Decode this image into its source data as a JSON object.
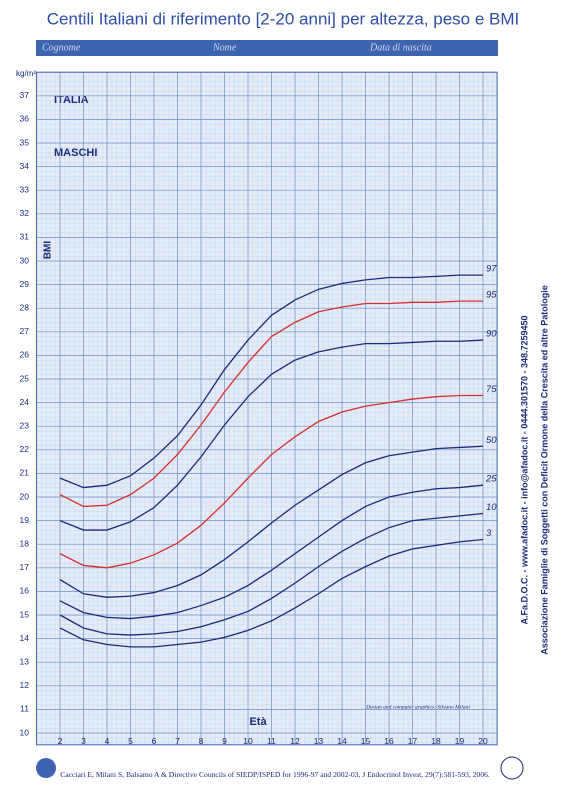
{
  "chart_data": {
    "type": "line",
    "title": "Centili Italiani di riferimento [2-20 anni] per altezza, peso e BMI",
    "fields": [
      "Cognome",
      "Nome",
      "Data di nascita"
    ],
    "country": "ITALIA",
    "sex": "MASCHI",
    "y_label": "BMI",
    "y_unit": "kg/m²",
    "x_label": "Età",
    "credit": "Design and computer graphics: Silvano Milani",
    "citation": "Cacciari E, Milani S, Balsamo A & Directive Councils of SIEDP/ISPED for 1996-97 and 2002-03, J Endocrinol Invest, 29(7):581-593, 2006.",
    "side_contacts": "A.Fa.D.O.C. - www.afadoc.it - info@afadoc.it - 0444.301570 - 348.7259450",
    "side_association": "Associazione Famiglie di Soggetti con Deficit Ormone della Crescita ed altre Patologie",
    "x": [
      2,
      3,
      4,
      5,
      6,
      7,
      8,
      9,
      10,
      11,
      12,
      13,
      14,
      15,
      16,
      17,
      18,
      19,
      20
    ],
    "series": [
      {
        "name": "97",
        "color": "#1b2a7a",
        "values": [
          20.8,
          20.4,
          20.5,
          20.9,
          21.65,
          22.6,
          23.9,
          25.4,
          26.65,
          27.7,
          28.35,
          28.8,
          29.05,
          29.2,
          29.3,
          29.3,
          29.35,
          29.4,
          29.4
        ]
      },
      {
        "name": "95",
        "color": "#d8302c",
        "values": [
          20.1,
          19.6,
          19.65,
          20.1,
          20.8,
          21.8,
          23.05,
          24.45,
          25.7,
          26.8,
          27.4,
          27.85,
          28.05,
          28.2,
          28.2,
          28.25,
          28.25,
          28.3,
          28.3
        ]
      },
      {
        "name": "90",
        "color": "#1b2a7a",
        "values": [
          19.0,
          18.6,
          18.6,
          18.95,
          19.55,
          20.5,
          21.7,
          23.05,
          24.25,
          25.2,
          25.8,
          26.15,
          26.35,
          26.5,
          26.5,
          26.55,
          26.6,
          26.6,
          26.65
        ]
      },
      {
        "name": "75",
        "color": "#d8302c",
        "values": [
          17.6,
          17.1,
          17.0,
          17.2,
          17.55,
          18.05,
          18.8,
          19.75,
          20.8,
          21.8,
          22.55,
          23.2,
          23.6,
          23.85,
          24.0,
          24.15,
          24.25,
          24.3,
          24.3
        ]
      },
      {
        "name": "50",
        "color": "#1b2a7a",
        "values": [
          16.5,
          15.9,
          15.75,
          15.8,
          15.95,
          16.25,
          16.7,
          17.35,
          18.1,
          18.9,
          19.65,
          20.3,
          20.95,
          21.45,
          21.75,
          21.9,
          22.05,
          22.1,
          22.15
        ]
      },
      {
        "name": "25",
        "color": "#1b2a7a",
        "values": [
          15.6,
          15.1,
          14.9,
          14.85,
          14.95,
          15.1,
          15.4,
          15.75,
          16.25,
          16.9,
          17.6,
          18.3,
          19.0,
          19.6,
          20.0,
          20.2,
          20.35,
          20.4,
          20.5
        ]
      },
      {
        "name": "10",
        "color": "#1b2a7a",
        "values": [
          15.0,
          14.45,
          14.2,
          14.15,
          14.2,
          14.3,
          14.5,
          14.8,
          15.15,
          15.7,
          16.35,
          17.05,
          17.7,
          18.25,
          18.7,
          19.0,
          19.1,
          19.2,
          19.3
        ]
      },
      {
        "name": "3",
        "color": "#1b2a7a",
        "values": [
          14.45,
          13.95,
          13.75,
          13.65,
          13.65,
          13.75,
          13.85,
          14.05,
          14.35,
          14.75,
          15.3,
          15.9,
          16.55,
          17.05,
          17.5,
          17.8,
          17.95,
          18.1,
          18.2
        ]
      }
    ],
    "xlim": [
      1,
      20.6
    ],
    "ylim": [
      9.5,
      38
    ],
    "xticks": [
      2,
      3,
      4,
      5,
      6,
      7,
      8,
      9,
      10,
      11,
      12,
      13,
      14,
      15,
      16,
      17,
      18,
      19,
      20
    ],
    "yticks": [
      10,
      11,
      12,
      13,
      14,
      15,
      16,
      17,
      18,
      19,
      20,
      21,
      22,
      23,
      24,
      25,
      26,
      27,
      28,
      29,
      30,
      31,
      32,
      33,
      34,
      35,
      36,
      37
    ],
    "grid": true
  }
}
